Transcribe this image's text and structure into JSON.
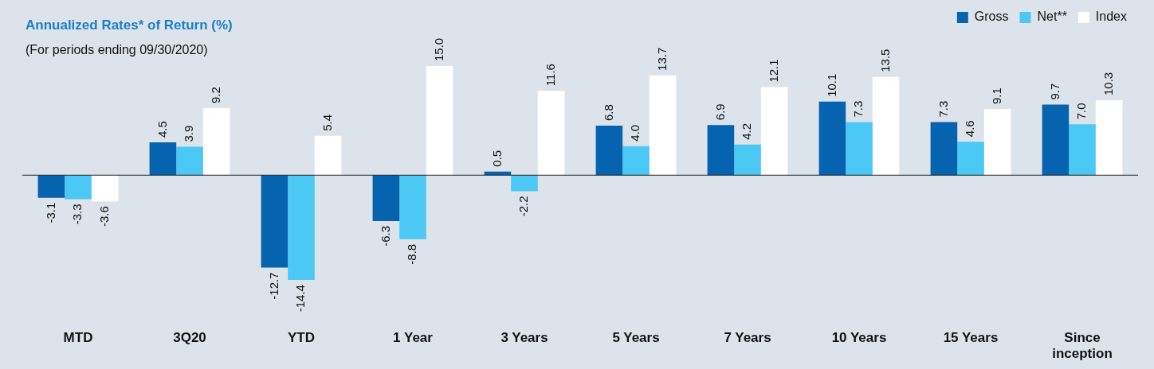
{
  "chart_data": {
    "type": "bar",
    "title": "Annualized Rates* of Return (%)",
    "subtitle": "(For periods ending 09/30/2020)",
    "categories": [
      "MTD",
      "3Q20",
      "YTD",
      "1 Year",
      "3 Years",
      "5 Years",
      "7 Years",
      "10 Years",
      "15 Years",
      "Since inception"
    ],
    "series": [
      {
        "name": "Gross",
        "color": "#0563b0",
        "values": [
          -3.1,
          4.5,
          -12.7,
          -6.3,
          0.5,
          6.8,
          6.9,
          10.1,
          7.3,
          9.7
        ],
        "value_labels": [
          "-3.1",
          "4.5",
          "-12.7",
          "-6.3",
          "0.5",
          "6.8",
          "6.9",
          "10.1",
          "7.3",
          "9.7"
        ]
      },
      {
        "name": "Net**",
        "color": "#4cc8f4",
        "values": [
          -3.3,
          3.9,
          -14.4,
          -8.8,
          -2.2,
          4.0,
          4.2,
          7.3,
          4.6,
          7.0
        ],
        "value_labels": [
          "-3.3",
          "3.9",
          "-14.4",
          "-8.8",
          "-2.2",
          "4.0",
          "4.2",
          "7.3",
          "4.6",
          "7.0"
        ]
      },
      {
        "name": "Index",
        "color": "#ffffff",
        "values": [
          -3.6,
          9.2,
          5.4,
          15.0,
          11.6,
          13.7,
          12.1,
          13.5,
          9.1,
          10.3
        ],
        "value_labels": [
          "-3.6",
          "9.2",
          "5.4",
          "15.0",
          "11.6",
          "13.7",
          "12.1",
          "13.5",
          "9.1",
          "10.3"
        ]
      }
    ],
    "relative": false,
    "legend": "top right",
    "grid": false
  }
}
